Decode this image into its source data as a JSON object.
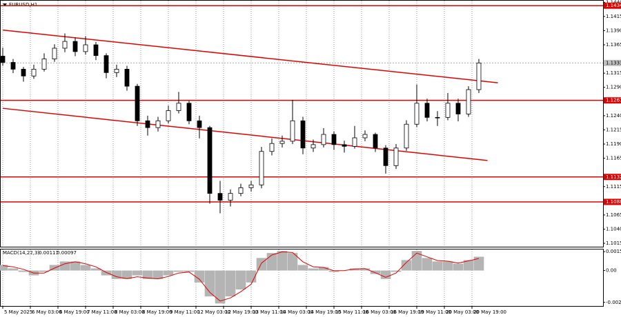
{
  "chart_data": [
    {
      "type": "candlestick",
      "title": "EURUSD,H1",
      "x": [
        0,
        6,
        12,
        18,
        24,
        30,
        36,
        42,
        48,
        54,
        60,
        66,
        72,
        78,
        84,
        90,
        96,
        102,
        108,
        114,
        120,
        126,
        132,
        138,
        144,
        150,
        156,
        162,
        168,
        174,
        180,
        186,
        192,
        198,
        204,
        210,
        216,
        222,
        228,
        234,
        240,
        246,
        252,
        258,
        264,
        270,
        276
      ],
      "open": [
        1.1345,
        1.1334,
        1.1322,
        1.131,
        1.1322,
        1.134,
        1.1359,
        1.1371,
        1.1353,
        1.1365,
        1.1346,
        1.1316,
        1.1322,
        1.1292,
        1.1231,
        1.1219,
        1.1231,
        1.1249,
        1.1262,
        1.1231,
        1.1219,
        1.1103,
        1.1091,
        1.1103,
        1.1113,
        1.1118,
        1.1177,
        1.1191,
        1.1195,
        1.1231,
        1.1183,
        1.1189,
        1.1207,
        1.1189,
        1.1186,
        1.1201,
        1.1207,
        1.1183,
        1.1152,
        1.1183,
        1.1225,
        1.1262,
        1.1237,
        1.1237,
        1.1262,
        1.1243,
        1.1286
      ],
      "high": [
        1.136,
        1.134,
        1.1326,
        1.133,
        1.135,
        1.1366,
        1.1385,
        1.1378,
        1.138,
        1.137,
        1.135,
        1.133,
        1.1328,
        1.1296,
        1.124,
        1.1238,
        1.1258,
        1.1282,
        1.1266,
        1.124,
        1.1222,
        1.1125,
        1.111,
        1.112,
        1.1125,
        1.1185,
        1.12,
        1.1205,
        1.1268,
        1.1238,
        1.1198,
        1.1218,
        1.1212,
        1.1196,
        1.1222,
        1.1214,
        1.121,
        1.1188,
        1.119,
        1.1232,
        1.1295,
        1.127,
        1.1248,
        1.128,
        1.127,
        1.1292,
        1.134
      ],
      "low": [
        1.1328,
        1.1315,
        1.13,
        1.1305,
        1.1318,
        1.1335,
        1.1352,
        1.1345,
        1.1348,
        1.1338,
        1.1306,
        1.1308,
        1.1284,
        1.1222,
        1.1205,
        1.1212,
        1.1226,
        1.1244,
        1.1225,
        1.12,
        1.1085,
        1.1068,
        1.108,
        1.1098,
        1.1106,
        1.1112,
        1.117,
        1.1184,
        1.119,
        1.1172,
        1.1176,
        1.1184,
        1.118,
        1.1175,
        1.1182,
        1.1195,
        1.1176,
        1.1138,
        1.1146,
        1.1178,
        1.122,
        1.123,
        1.1222,
        1.1232,
        1.123,
        1.1238,
        1.128
      ],
      "close": [
        1.1334,
        1.1322,
        1.131,
        1.1322,
        1.134,
        1.1359,
        1.1371,
        1.1353,
        1.1365,
        1.1346,
        1.1316,
        1.1322,
        1.1292,
        1.1231,
        1.1219,
        1.1231,
        1.1249,
        1.1262,
        1.1231,
        1.1219,
        1.1103,
        1.1091,
        1.1103,
        1.1113,
        1.1118,
        1.1177,
        1.1191,
        1.1195,
        1.1231,
        1.1183,
        1.1189,
        1.1207,
        1.1189,
        1.1186,
        1.1201,
        1.1207,
        1.1183,
        1.1152,
        1.1183,
        1.1225,
        1.1262,
        1.1237,
        1.1237,
        1.1262,
        1.1243,
        1.1286,
        1.1333
      ],
      "xlim": [
        -1.6,
        348
      ],
      "xticks": [
        {
          "value": 0,
          "label": "5 May 2025"
        },
        {
          "value": 16,
          "label": "6 May 03:00"
        },
        {
          "value": 32,
          "label": "6 May 19:00"
        },
        {
          "value": 48,
          "label": "7 May 11:00"
        },
        {
          "value": 64,
          "label": "8 May 03:00"
        },
        {
          "value": 80,
          "label": "8 May 19:00"
        },
        {
          "value": 96,
          "label": "9 May 11:00"
        },
        {
          "value": 112,
          "label": "12 May 03:00"
        },
        {
          "value": 128,
          "label": "12 May 19:00"
        },
        {
          "value": 144,
          "label": "13 May 11:00"
        },
        {
          "value": 160,
          "label": "14 May 03:00"
        },
        {
          "value": 176,
          "label": "14 May 19:00"
        },
        {
          "value": 192,
          "label": "15 May 11:00"
        },
        {
          "value": 208,
          "label": "16 May 03:00"
        },
        {
          "value": 224,
          "label": "16 May 19:00"
        },
        {
          "value": 240,
          "label": "19 May 11:00"
        },
        {
          "value": 256,
          "label": "20 May 03:00"
        },
        {
          "value": 272,
          "label": "20 May 19:00"
        }
      ],
      "ylim": [
        1.1009,
        1.1444
      ],
      "yticks": [
        {
          "value": 1.144,
          "label": "1.1440"
        },
        1.1415,
        {
          "value": 1.139,
          "label": "1.1390"
        },
        1.1365,
        1.1315,
        {
          "value": 1.129,
          "label": "1.1290"
        },
        {
          "value": 1.124,
          "label": "1.1240"
        },
        1.1215,
        {
          "value": 1.119,
          "label": "1.1190"
        },
        1.1165,
        1.1115,
        1.1065,
        {
          "value": 1.104,
          "label": "1.1040"
        },
        1.1015
      ],
      "levels": [
        1.1434,
        1.1267,
        1.1132,
        1.1088
      ],
      "trend_lines": [
        {
          "x": [
            0,
            287
          ],
          "y": [
            1.1391,
            1.1298
          ]
        },
        {
          "x": [
            0,
            281
          ],
          "y": [
            1.1253,
            1.1161
          ]
        }
      ],
      "last_price": 1.1333,
      "color": "#e00000"
    },
    {
      "type": "macd",
      "title": "MACD(14,22,3)",
      "histogram": {
        "values": [
          0.00045,
          0.00017,
          -0.00011,
          -0.00039,
          -0.00011,
          0.00045,
          0.00073,
          0.00073,
          0.00045,
          0.00017,
          -0.00039,
          -0.00068,
          -0.00068,
          -0.00039,
          -0.00068,
          -0.00068,
          -0.00039,
          -0.00011,
          -0.00011,
          -0.00096,
          -0.00208,
          -0.00265,
          -0.00208,
          -0.00152,
          -0.00096,
          0.00101,
          0.00141,
          0.00158,
          0.00141,
          0.00045,
          0.00017,
          0.00028,
          -0.00011,
          0,
          0.00017,
          0.00017,
          -0.00028,
          -0.00068,
          -0.00011,
          0.00084,
          0.00158,
          0.00101,
          0.00073,
          0.00073,
          0.00056,
          0.00084,
          0.00111
        ],
        "color": "#b4b4b4"
      },
      "signal": {
        "values": [
          0.0004,
          0.0003,
          0.0001,
          -0.0002,
          -0.0002,
          0.0002,
          0.00055,
          0.0007,
          0.00055,
          0.0003,
          -0.00015,
          -0.0005,
          -0.00065,
          -0.0005,
          -0.0006,
          -0.00066,
          -0.00048,
          -0.0002,
          -0.00012,
          -0.0007,
          -0.00175,
          -0.00245,
          -0.0022,
          -0.0017,
          -0.0011,
          0.0006,
          0.00125,
          0.0015,
          0.00145,
          0.0007,
          0.0003,
          0.00025,
          -2e-05,
          0,
          0.00012,
          0.00016,
          -0.00018,
          -0.00055,
          -0.0002,
          0.00065,
          0.0014,
          0.0011,
          0.0008,
          0.00075,
          0.0006,
          0.00078,
          0.00097
        ],
        "color": "#e00000"
      },
      "ylim": [
        -0.00285,
        0.00175
      ],
      "yticks": [
        0.00152,
        {
          "value": 0,
          "label": "0.00"
        },
        -0.00256
      ]
    }
  ]
}
